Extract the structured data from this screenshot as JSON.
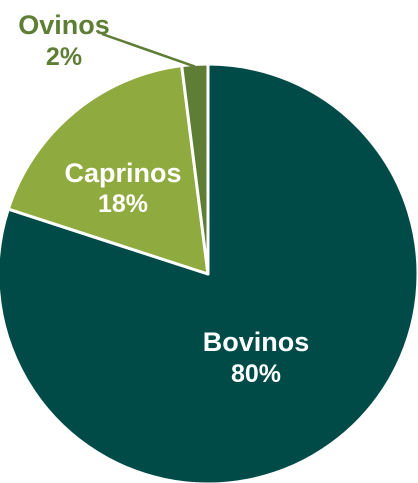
{
  "chart_data": {
    "type": "pie",
    "title": "",
    "slices": [
      {
        "label": "Bovinos",
        "value": 80,
        "value_label": "80%",
        "color": "#004b47"
      },
      {
        "label": "Caprinos",
        "value": 18,
        "value_label": "18%",
        "color": "#8faa3e"
      },
      {
        "label": "Ovinos",
        "value": 2,
        "value_label": "2%",
        "color": "#5e7d35"
      }
    ],
    "legend": "none",
    "label_colors": {
      "inside": "#ffffff",
      "outside": "#5e7d35"
    }
  }
}
